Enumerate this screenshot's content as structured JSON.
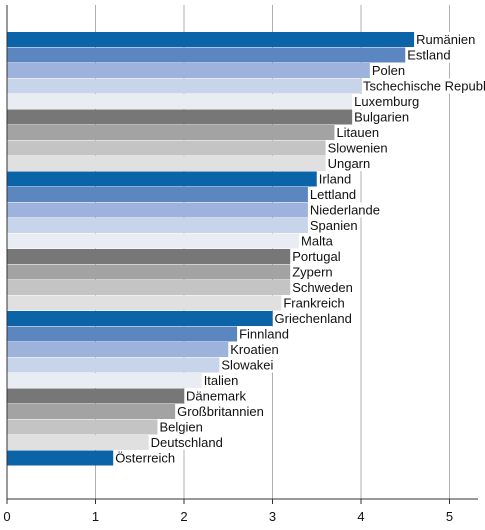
{
  "chart_data": {
    "type": "bar",
    "orientation": "horizontal",
    "title": "",
    "xlabel": "",
    "ylabel": "",
    "xlim": [
      0,
      5.2
    ],
    "xticks": [
      0,
      1,
      2,
      3,
      4,
      5
    ],
    "grid": "vertical",
    "legend": "none",
    "categories": [
      "Rumänien",
      "Estland",
      "Polen",
      "Tschechische Republik",
      "Luxemburg",
      "Bulgarien",
      "Litauen",
      "Slowenien",
      "Ungarn",
      "Irland",
      "Lettland",
      "Niederlande",
      "Spanien",
      "Malta",
      "Portugal",
      "Zypern",
      "Schweden",
      "Frankreich",
      "Griechenland",
      "Finnland",
      "Kroatien",
      "Slowakei",
      "Italien",
      "Dänemark",
      "Großbritannien",
      "Belgien",
      "Deutschland",
      "Österreich"
    ],
    "values": [
      4.6,
      4.5,
      4.1,
      4.0,
      3.9,
      3.9,
      3.7,
      3.6,
      3.6,
      3.5,
      3.4,
      3.4,
      3.4,
      3.3,
      3.2,
      3.2,
      3.2,
      3.1,
      3.0,
      2.6,
      2.5,
      2.4,
      2.2,
      2.0,
      1.9,
      1.7,
      1.6,
      1.2
    ],
    "colors": [
      "#0b64a8",
      "#5b86c0",
      "#9db3dc",
      "#c7d4ea",
      "#e9ecf2",
      "#777777",
      "#a3a3a3",
      "#c4c4c4",
      "#e0e0e0",
      "#0b64a8",
      "#5b86c0",
      "#9db3dc",
      "#c7d4ea",
      "#e9ecf2",
      "#777777",
      "#a3a3a3",
      "#c4c4c4",
      "#e0e0e0",
      "#0b64a8",
      "#5b86c0",
      "#9db3dc",
      "#c7d4ea",
      "#e9ecf2",
      "#777777",
      "#a3a3a3",
      "#c4c4c4",
      "#e0e0e0",
      "#0b64a8"
    ]
  }
}
